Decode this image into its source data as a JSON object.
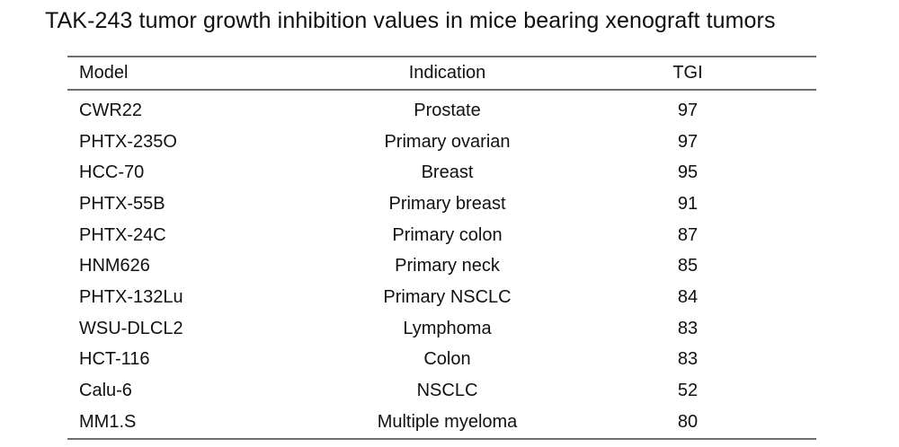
{
  "colors": {
    "background": "#ffffff",
    "text": "#111111",
    "rule_lines": "#6d6d6d"
  },
  "chart_data": {
    "type": "table",
    "title": "TAK-243 tumor growth inhibition values in mice bearing xenograft tumors",
    "columns": [
      "Model",
      "Indication",
      "TGI"
    ],
    "rows": [
      {
        "model": "CWR22",
        "indication": "Prostate",
        "tgi": 97
      },
      {
        "model": "PHTX-235O",
        "indication": "Primary ovarian",
        "tgi": 97
      },
      {
        "model": "HCC-70",
        "indication": "Breast",
        "tgi": 95
      },
      {
        "model": "PHTX-55B",
        "indication": "Primary breast",
        "tgi": 91
      },
      {
        "model": "PHTX-24C",
        "indication": "Primary colon",
        "tgi": 87
      },
      {
        "model": "HNM626",
        "indication": "Primary neck",
        "tgi": 85
      },
      {
        "model": "PHTX-132Lu",
        "indication": "Primary NSCLC",
        "tgi": 84
      },
      {
        "model": "WSU-DLCL2",
        "indication": "Lymphoma",
        "tgi": 83
      },
      {
        "model": "HCT-116",
        "indication": "Colon",
        "tgi": 83
      },
      {
        "model": "Calu-6",
        "indication": "NSCLC",
        "tgi": 52
      },
      {
        "model": "MM1.S",
        "indication": "Multiple myeloma",
        "tgi": 80
      }
    ]
  }
}
